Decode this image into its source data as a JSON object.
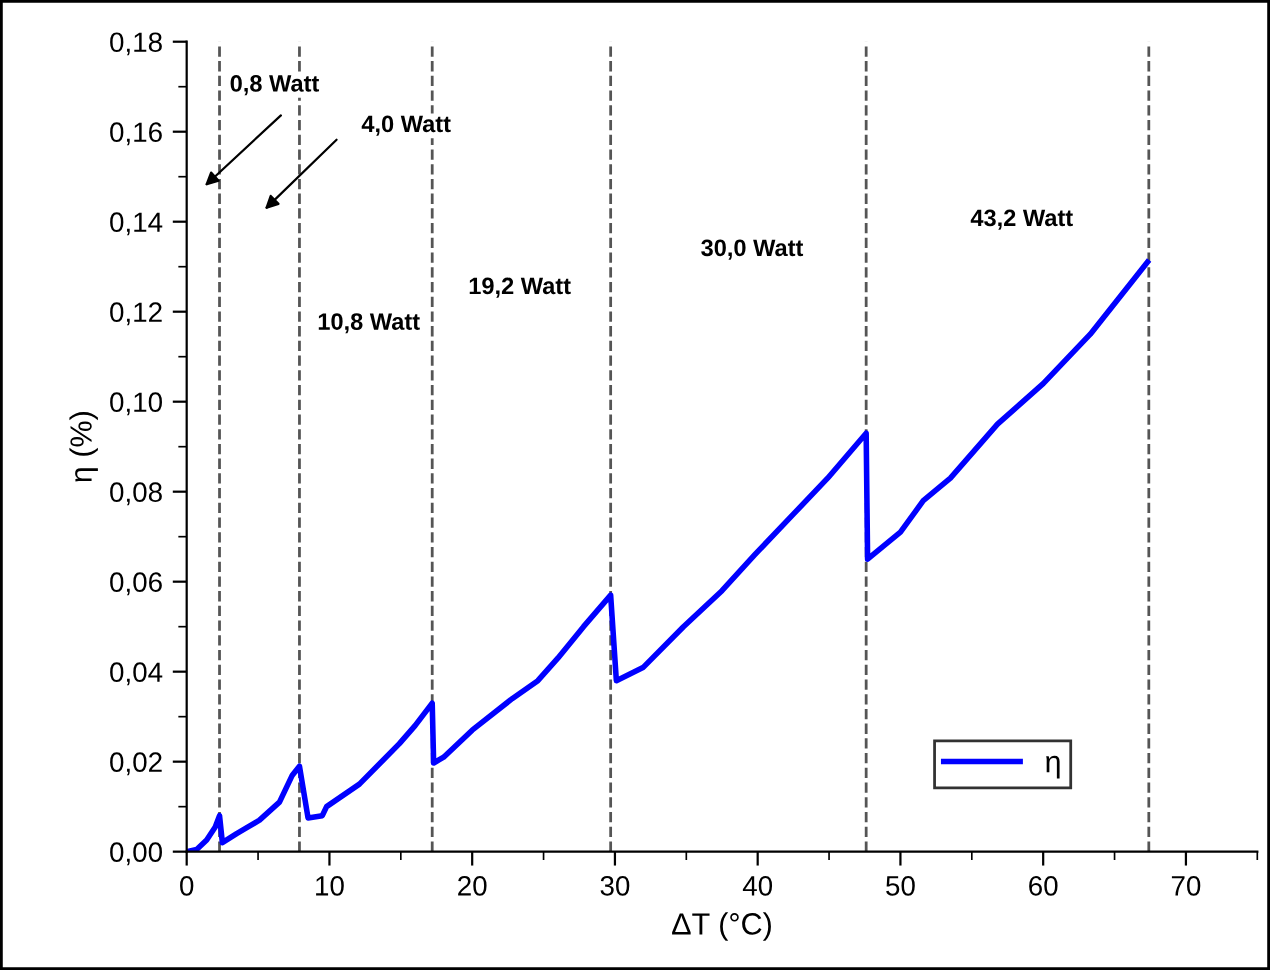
{
  "chart_data": {
    "type": "line",
    "xlabel": "ΔT (°C)",
    "ylabel": "η (%)",
    "series": [
      {
        "name": "η",
        "color": "#0000ff",
        "x": [
          0,
          0.7,
          1.4,
          2.0,
          2.3,
          2.5,
          3.5,
          4.3,
          5.1,
          6.5,
          7.4,
          7.9,
          8.5,
          9.5,
          9.8,
          12.1,
          14.9,
          16.0,
          17.2,
          17.3,
          18.0,
          20.0,
          22.8,
          24.6,
          26.0,
          27.8,
          29.7,
          30.1,
          32.0,
          34.8,
          37.5,
          39.8,
          42.5,
          44.9,
          47.6,
          47.7,
          50.0,
          51.6,
          53.5,
          56.8,
          60.0,
          63.3,
          67.3
        ],
        "values": [
          0,
          0.0005,
          0.0026,
          0.0055,
          0.008,
          0.002,
          0.004,
          0.0055,
          0.007,
          0.011,
          0.017,
          0.019,
          0.0075,
          0.008,
          0.01,
          0.015,
          0.024,
          0.028,
          0.033,
          0.0197,
          0.021,
          0.027,
          0.034,
          0.038,
          0.043,
          0.05,
          0.057,
          0.038,
          0.041,
          0.05,
          0.058,
          0.066,
          0.075,
          0.083,
          0.093,
          0.065,
          0.071,
          0.078,
          0.083,
          0.095,
          0.104,
          0.115,
          0.131
        ]
      }
    ],
    "xlim": [
      0,
      75
    ],
    "xticks": [
      0,
      {
        "value": 5,
        "label": null
      },
      10,
      {
        "value": 15,
        "label": null
      },
      20,
      {
        "value": 25,
        "label": null
      },
      30,
      {
        "value": 35,
        "label": null
      },
      40,
      {
        "value": 45,
        "label": null
      },
      50,
      {
        "value": 55,
        "label": null
      },
      60,
      {
        "value": 65,
        "label": null
      },
      70,
      {
        "value": 75,
        "label": null
      }
    ],
    "ylim": [
      0,
      0.18
    ],
    "yticks": [
      {
        "value": 0,
        "label": "0,00"
      },
      {
        "value": 0.01,
        "label": null
      },
      {
        "value": 0.02,
        "label": "0,02"
      },
      {
        "value": 0.03,
        "label": null
      },
      {
        "value": 0.04,
        "label": "0,04"
      },
      {
        "value": 0.05,
        "label": null
      },
      {
        "value": 0.06,
        "label": "0,06"
      },
      {
        "value": 0.07,
        "label": null
      },
      {
        "value": 0.08,
        "label": "0,08"
      },
      {
        "value": 0.09,
        "label": null
      },
      {
        "value": 0.1,
        "label": "0,10"
      },
      {
        "value": 0.11,
        "label": null
      },
      {
        "value": 0.12,
        "label": "0,12"
      },
      {
        "value": 0.13,
        "label": null
      },
      {
        "value": 0.14,
        "label": "0,14"
      },
      {
        "value": 0.15,
        "label": null
      },
      {
        "value": 0.16,
        "label": "0,16"
      },
      {
        "value": 0.17,
        "label": null
      },
      {
        "value": 0.18,
        "label": "0,18"
      }
    ],
    "ref_lines": [
      {
        "axis": "x",
        "value": 2.3,
        "color": "#555555",
        "line_style": "dashed"
      },
      {
        "axis": "x",
        "value": 7.9,
        "color": "#555555",
        "line_style": "dashed"
      },
      {
        "axis": "x",
        "value": 17.2,
        "color": "#555555",
        "line_style": "dashed"
      },
      {
        "axis": "x",
        "value": 29.7,
        "color": "#555555",
        "line_style": "dashed"
      },
      {
        "axis": "x",
        "value": 47.6,
        "color": "#555555",
        "line_style": "dashed"
      },
      {
        "axis": "x",
        "value": 67.4,
        "color": "#555555",
        "line_style": "dashed"
      }
    ],
    "annotations": [
      "0,8 Watt",
      "4,0 Watt",
      "10,8 Watt",
      "19,2 Watt",
      "30,0 Watt",
      "43,2 Watt"
    ],
    "legend": "bottom right",
    "grid": false,
    "marker": "none",
    "line_style": "solid"
  }
}
